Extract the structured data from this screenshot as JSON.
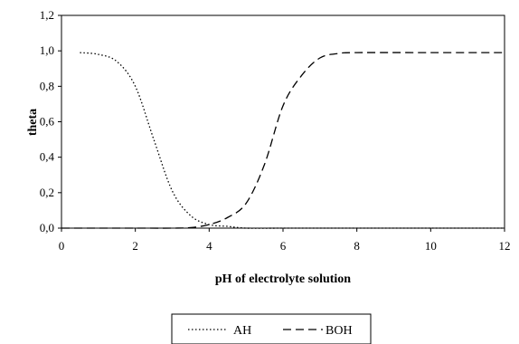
{
  "chart_data": {
    "type": "line",
    "xlabel": "pH of electrolyte solution",
    "ylabel": "theta",
    "xlim": [
      0,
      12
    ],
    "ylim": [
      0,
      1.2
    ],
    "xticks": [
      "0",
      "2",
      "4",
      "6",
      "8",
      "10",
      "12"
    ],
    "yticks": [
      "0,0",
      "0,2",
      "0,4",
      "0,6",
      "0,8",
      "1,0",
      "1,2"
    ],
    "grid": false,
    "legend_position": "bottom-center",
    "series": [
      {
        "name": "AH",
        "style": "dotted",
        "color": "#000000",
        "x": [
          0.5,
          1.0,
          1.5,
          2.0,
          2.5,
          3.0,
          3.5,
          4.0,
          4.5,
          5.0,
          6.0,
          7.0,
          8.0,
          10.0,
          12.0
        ],
        "y": [
          0.99,
          0.98,
          0.94,
          0.8,
          0.5,
          0.21,
          0.07,
          0.02,
          0.01,
          0.0,
          0.0,
          0.0,
          0.0,
          0.0,
          0.0
        ]
      },
      {
        "name": "BOH",
        "style": "dashed",
        "color": "#000000",
        "x": [
          0.0,
          1.0,
          2.0,
          3.0,
          3.5,
          4.0,
          4.5,
          5.0,
          5.5,
          6.0,
          6.5,
          7.0,
          7.5,
          8.0,
          10.0,
          12.0
        ],
        "y": [
          0.0,
          0.0,
          0.0,
          0.0,
          0.003,
          0.02,
          0.06,
          0.14,
          0.36,
          0.69,
          0.86,
          0.96,
          0.985,
          0.99,
          0.99,
          0.99
        ]
      }
    ]
  }
}
